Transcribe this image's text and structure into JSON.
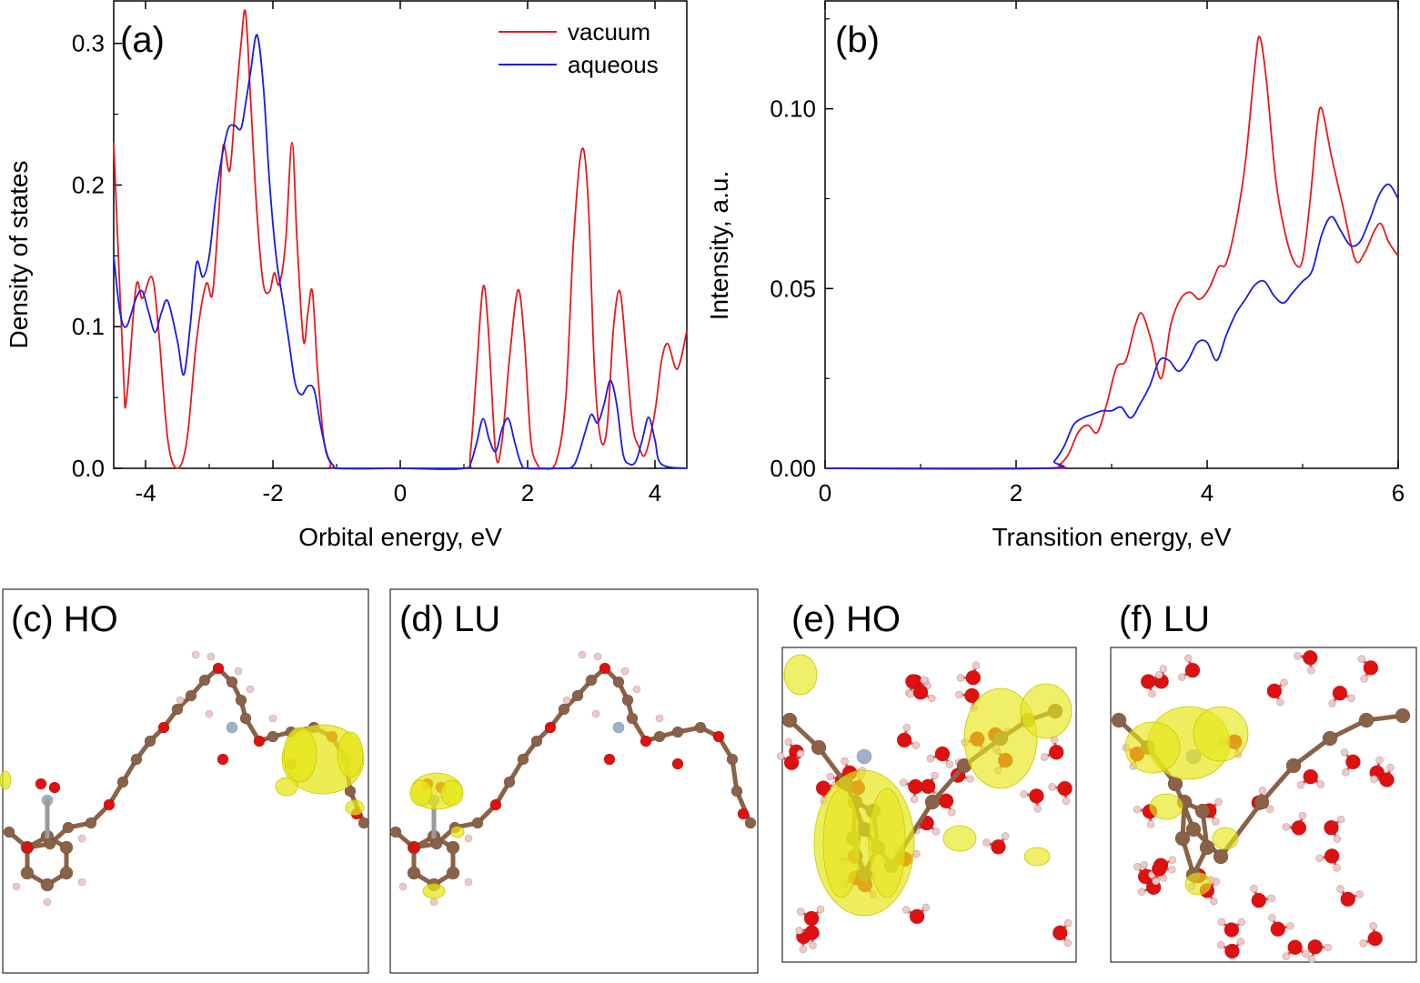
{
  "chart_data": [
    {
      "panel": "(a)",
      "type": "line",
      "xlabel": "Orbital energy, eV",
      "ylabel": "Density of states",
      "xlim": [
        -4.5,
        4.5
      ],
      "ylim": [
        0,
        0.33
      ],
      "xticks": [
        -4,
        -2,
        0,
        2,
        4
      ],
      "xtick_labels": [
        "-4",
        "-2",
        "0",
        "2",
        "4"
      ],
      "yticks": [
        0.0,
        0.1,
        0.2,
        0.3
      ],
      "ytick_labels": [
        "0.0",
        "0.1",
        "0.2",
        "0.3"
      ],
      "legend": "top-right",
      "series": [
        {
          "name": "vacuum",
          "color": "#e8191d",
          "x": [
            -4.5,
            -4.35,
            -4.3,
            -4.15,
            -4.05,
            -3.9,
            -3.8,
            -3.65,
            -3.5,
            -3.35,
            -3.2,
            -3.05,
            -2.95,
            -2.85,
            -2.78,
            -2.68,
            -2.6,
            -2.5,
            -2.43,
            -2.35,
            -2.25,
            -2.15,
            -2.05,
            -1.98,
            -1.9,
            -1.8,
            -1.7,
            -1.62,
            -1.52,
            -1.45,
            -1.38,
            -1.3,
            -1.2,
            -1.1,
            -1.0,
            0.0,
            1.0,
            1.1,
            1.2,
            1.3,
            1.38,
            1.5,
            1.6,
            1.72,
            1.85,
            1.95,
            2.05,
            2.15,
            2.25,
            2.45,
            2.6,
            2.72,
            2.85,
            2.95,
            3.05,
            3.15,
            3.25,
            3.35,
            3.45,
            3.55,
            3.65,
            3.75,
            3.85,
            4.0,
            4.1,
            4.2,
            4.35,
            4.5
          ],
          "values": [
            0.23,
            0.07,
            0.048,
            0.128,
            0.12,
            0.135,
            0.1,
            0.02,
            0.0,
            0.02,
            0.09,
            0.13,
            0.123,
            0.18,
            0.228,
            0.21,
            0.25,
            0.3,
            0.322,
            0.26,
            0.18,
            0.13,
            0.125,
            0.138,
            0.13,
            0.16,
            0.23,
            0.16,
            0.09,
            0.11,
            0.125,
            0.07,
            0.02,
            0.004,
            0.0,
            0.0,
            0.0,
            0.01,
            0.07,
            0.128,
            0.1,
            0.01,
            0.02,
            0.08,
            0.126,
            0.09,
            0.02,
            0.003,
            0.0,
            0.005,
            0.05,
            0.16,
            0.225,
            0.19,
            0.07,
            0.02,
            0.03,
            0.1,
            0.125,
            0.08,
            0.03,
            0.015,
            0.01,
            0.04,
            0.075,
            0.088,
            0.07,
            0.097
          ]
        },
        {
          "name": "aqueous",
          "color": "#1a1ae6",
          "x": [
            -4.5,
            -4.4,
            -4.3,
            -4.15,
            -4.05,
            -3.95,
            -3.85,
            -3.75,
            -3.65,
            -3.5,
            -3.4,
            -3.3,
            -3.2,
            -3.1,
            -3.0,
            -2.9,
            -2.8,
            -2.7,
            -2.6,
            -2.5,
            -2.42,
            -2.35,
            -2.25,
            -2.15,
            -2.05,
            -1.95,
            -1.85,
            -1.75,
            -1.65,
            -1.55,
            -1.45,
            -1.35,
            -1.25,
            -1.15,
            -1.05,
            -0.95,
            0.0,
            1.0,
            1.1,
            1.2,
            1.3,
            1.4,
            1.5,
            1.6,
            1.7,
            1.8,
            1.9,
            2.0,
            2.5,
            2.7,
            2.8,
            2.9,
            3.0,
            3.1,
            3.2,
            3.3,
            3.4,
            3.5,
            3.6,
            3.7,
            3.8,
            3.9,
            4.0,
            4.1,
            4.5
          ],
          "values": [
            0.15,
            0.11,
            0.1,
            0.12,
            0.125,
            0.11,
            0.096,
            0.11,
            0.118,
            0.09,
            0.066,
            0.1,
            0.145,
            0.135,
            0.15,
            0.19,
            0.22,
            0.24,
            0.242,
            0.24,
            0.26,
            0.28,
            0.306,
            0.27,
            0.2,
            0.15,
            0.12,
            0.09,
            0.06,
            0.052,
            0.058,
            0.055,
            0.03,
            0.01,
            0.002,
            0.0,
            0.0,
            0.0,
            0.003,
            0.018,
            0.035,
            0.02,
            0.012,
            0.028,
            0.035,
            0.018,
            0.003,
            0.0,
            0.0,
            0.001,
            0.01,
            0.025,
            0.038,
            0.032,
            0.045,
            0.062,
            0.045,
            0.01,
            0.003,
            0.005,
            0.02,
            0.036,
            0.02,
            0.003,
            0.0
          ]
        }
      ]
    },
    {
      "panel": "(b)",
      "type": "line",
      "xlabel": "Transition energy, eV",
      "ylabel": "Intensity, a.u.",
      "xlim": [
        0,
        6
      ],
      "ylim": [
        0,
        0.13
      ],
      "xticks": [
        0,
        2,
        4,
        6
      ],
      "xtick_labels": [
        "0",
        "2",
        "4",
        "6"
      ],
      "yticks": [
        0.0,
        0.05,
        0.1
      ],
      "ytick_labels": [
        "0.00",
        "0.05",
        "0.10"
      ],
      "series": [
        {
          "color": "#e8191d",
          "x": [
            0,
            2.3,
            2.45,
            2.55,
            2.65,
            2.75,
            2.85,
            2.95,
            3.05,
            3.15,
            3.25,
            3.32,
            3.42,
            3.52,
            3.62,
            3.72,
            3.82,
            3.92,
            4.02,
            4.12,
            4.2,
            4.3,
            4.4,
            4.5,
            4.55,
            4.62,
            4.72,
            4.82,
            4.92,
            5.0,
            5.08,
            5.15,
            5.2,
            5.3,
            5.42,
            5.55,
            5.65,
            5.75,
            5.82,
            5.9,
            6.0
          ],
          "values": [
            0,
            0,
            0.001,
            0.004,
            0.01,
            0.012,
            0.01,
            0.018,
            0.028,
            0.03,
            0.04,
            0.043,
            0.035,
            0.025,
            0.04,
            0.047,
            0.049,
            0.047,
            0.05,
            0.056,
            0.057,
            0.068,
            0.085,
            0.112,
            0.12,
            0.108,
            0.08,
            0.065,
            0.057,
            0.058,
            0.075,
            0.095,
            0.1,
            0.087,
            0.073,
            0.058,
            0.06,
            0.066,
            0.068,
            0.063,
            0.059
          ]
        },
        {
          "color": "#1a1ae6",
          "x": [
            0,
            2.3,
            2.4,
            2.5,
            2.6,
            2.7,
            2.8,
            2.9,
            3.0,
            3.1,
            3.2,
            3.3,
            3.4,
            3.5,
            3.6,
            3.7,
            3.8,
            3.9,
            4.0,
            4.1,
            4.2,
            4.3,
            4.4,
            4.5,
            4.6,
            4.7,
            4.8,
            4.9,
            5.0,
            5.1,
            5.2,
            5.3,
            5.4,
            5.5,
            5.6,
            5.7,
            5.8,
            5.9,
            6.0
          ],
          "values": [
            0,
            0,
            0.002,
            0.006,
            0.012,
            0.014,
            0.015,
            0.016,
            0.016,
            0.017,
            0.014,
            0.018,
            0.023,
            0.03,
            0.03,
            0.027,
            0.03,
            0.035,
            0.035,
            0.03,
            0.037,
            0.043,
            0.047,
            0.051,
            0.052,
            0.048,
            0.046,
            0.049,
            0.052,
            0.055,
            0.065,
            0.07,
            0.066,
            0.062,
            0.063,
            0.069,
            0.076,
            0.079,
            0.075
          ]
        }
      ]
    }
  ],
  "structure_panels": [
    {
      "label": "(c) HO"
    },
    {
      "label": "(d) LU"
    },
    {
      "label": "(e) HO"
    },
    {
      "label": "(f) LU"
    }
  ],
  "colors": {
    "carbon": "#8a6248",
    "oxygen": "#e01010",
    "hydrogen": "#f0c8c8",
    "nitrogen": "#9fb0cc",
    "isosurface": "#e6e61a"
  }
}
